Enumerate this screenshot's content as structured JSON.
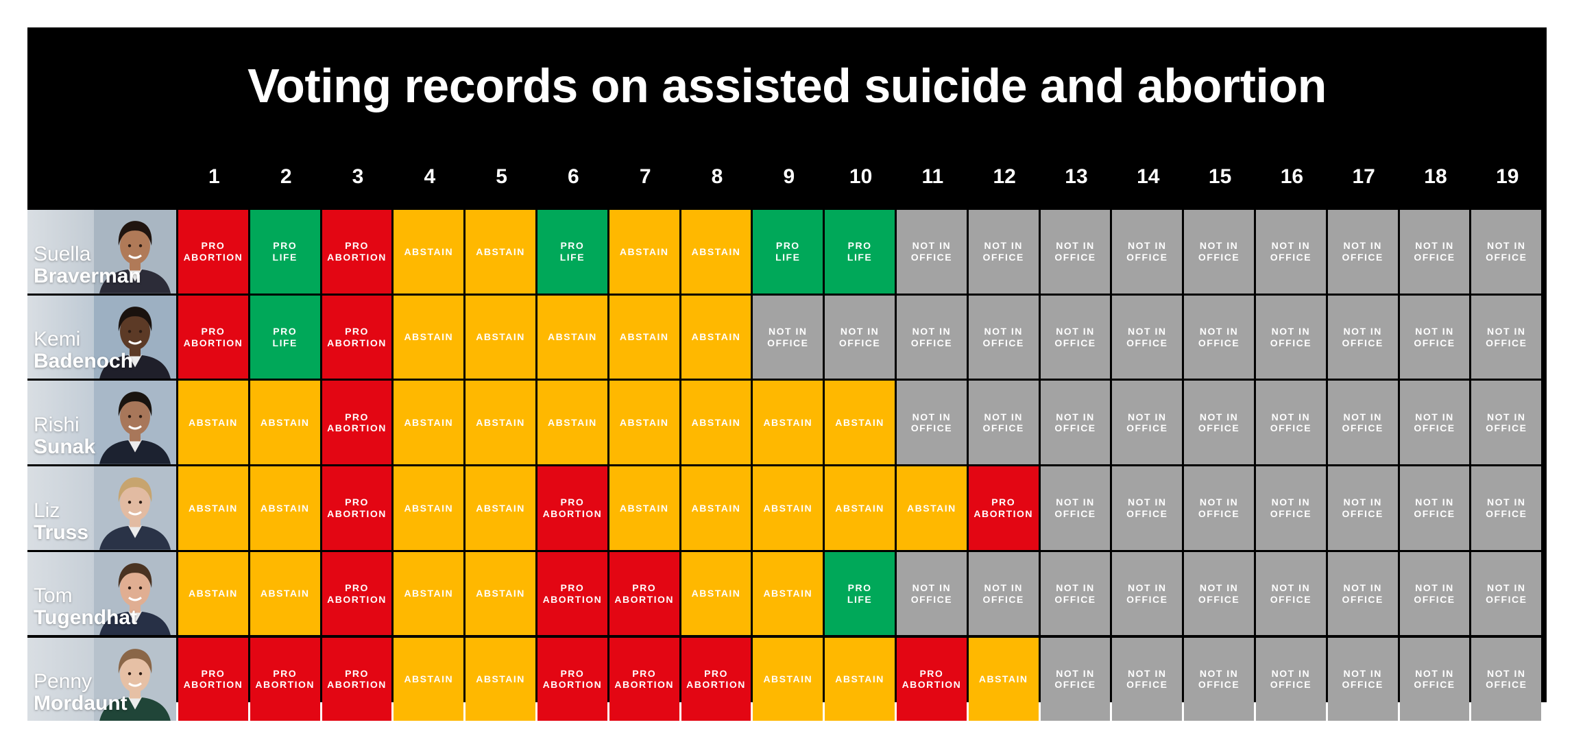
{
  "chart_data": {
    "type": "table",
    "title": "Voting records on assisted suicide and abortion",
    "columns": [
      "1",
      "2",
      "3",
      "4",
      "5",
      "6",
      "7",
      "8",
      "9",
      "10",
      "11",
      "12",
      "13",
      "14",
      "15",
      "16",
      "17",
      "18",
      "19"
    ],
    "legend": {
      "pro_abortion": {
        "text": "PRO\nABORTION",
        "color": "#e30613"
      },
      "pro_life": {
        "text": "PRO\nLIFE",
        "color": "#00a859"
      },
      "abstain": {
        "text": "ABSTAIN",
        "color": "#ffb800"
      },
      "not_in_office": {
        "text": "NOT IN\nOFFICE",
        "color": "#a3a3a3"
      }
    },
    "rows": [
      {
        "first": "Suella",
        "last": "Braverman",
        "photo_bg": "#a9b6c2",
        "skin": "#b07a58",
        "hair": "#201510",
        "suit": "#2c2c38",
        "votes": [
          "pro_abortion",
          "pro_life",
          "pro_abortion",
          "abstain",
          "abstain",
          "pro_life",
          "abstain",
          "abstain",
          "pro_life",
          "pro_life",
          "not_in_office",
          "not_in_office",
          "not_in_office",
          "not_in_office",
          "not_in_office",
          "not_in_office",
          "not_in_office",
          "not_in_office",
          "not_in_office"
        ]
      },
      {
        "first": "Kemi",
        "last": "Badenoch",
        "photo_bg": "#9db0c2",
        "skin": "#5c3a26",
        "hair": "#1a120e",
        "suit": "#1f1f2a",
        "votes": [
          "pro_abortion",
          "pro_life",
          "pro_abortion",
          "abstain",
          "abstain",
          "abstain",
          "abstain",
          "abstain",
          "not_in_office",
          "not_in_office",
          "not_in_office",
          "not_in_office",
          "not_in_office",
          "not_in_office",
          "not_in_office",
          "not_in_office",
          "not_in_office",
          "not_in_office",
          "not_in_office"
        ]
      },
      {
        "first": "Rishi",
        "last": "Sunak",
        "photo_bg": "#a8b8c8",
        "skin": "#a8775a",
        "hair": "#191410",
        "suit": "#1c2230",
        "votes": [
          "abstain",
          "abstain",
          "pro_abortion",
          "abstain",
          "abstain",
          "abstain",
          "abstain",
          "abstain",
          "abstain",
          "abstain",
          "not_in_office",
          "not_in_office",
          "not_in_office",
          "not_in_office",
          "not_in_office",
          "not_in_office",
          "not_in_office",
          "not_in_office",
          "not_in_office"
        ]
      },
      {
        "first": "Liz",
        "last": "Truss",
        "photo_bg": "#b3bfcb",
        "skin": "#e2bba2",
        "hair": "#c7a46e",
        "suit": "#2a3347",
        "votes": [
          "abstain",
          "abstain",
          "pro_abortion",
          "abstain",
          "abstain",
          "pro_abortion",
          "abstain",
          "abstain",
          "abstain",
          "abstain",
          "abstain",
          "pro_abortion",
          "not_in_office",
          "not_in_office",
          "not_in_office",
          "not_in_office",
          "not_in_office",
          "not_in_office",
          "not_in_office"
        ]
      },
      {
        "first": "Tom",
        "last": "Tugendhat",
        "photo_bg": "#b0bcc8",
        "skin": "#e0ae92",
        "hair": "#4a3322",
        "suit": "#273046",
        "votes": [
          "abstain",
          "abstain",
          "pro_abortion",
          "abstain",
          "abstain",
          "pro_abortion",
          "pro_abortion",
          "abstain",
          "abstain",
          "pro_life",
          "not_in_office",
          "not_in_office",
          "not_in_office",
          "not_in_office",
          "not_in_office",
          "not_in_office",
          "not_in_office",
          "not_in_office",
          "not_in_office"
        ]
      },
      {
        "first": "Penny",
        "last": "Mordaunt",
        "photo_bg": "#b7c2cc",
        "skin": "#e6c0a5",
        "hair": "#8a6647",
        "suit": "#204538",
        "votes": [
          "pro_abortion",
          "pro_abortion",
          "pro_abortion",
          "abstain",
          "abstain",
          "pro_abortion",
          "pro_abortion",
          "pro_abortion",
          "abstain",
          "abstain",
          "pro_abortion",
          "abstain",
          "not_in_office",
          "not_in_office",
          "not_in_office",
          "not_in_office",
          "not_in_office",
          "not_in_office",
          "not_in_office"
        ]
      }
    ]
  }
}
